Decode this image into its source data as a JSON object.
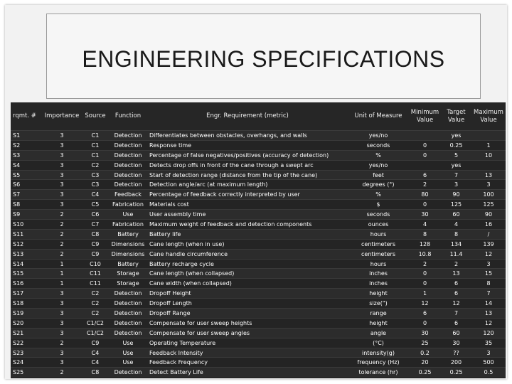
{
  "title": "ENGINEERING SPECIFICATIONS",
  "table": {
    "headers": {
      "rqmt": "rqmt. #",
      "importance": "Importance",
      "source": "Source",
      "function": "Function",
      "requirement": "Engr. Requirement (metric)",
      "unit": "Unit of Measure",
      "min": "Minimum Value",
      "target": "Target Value",
      "max": "Maximum Value"
    },
    "rows": [
      [
        "S1",
        "3",
        "C1",
        "Detection",
        "Differentiates between obstacles, overhangs, and walls",
        "yes/no",
        "",
        "yes",
        ""
      ],
      [
        "S2",
        "3",
        "C1",
        "Detection",
        "Response time",
        "seconds",
        "0",
        "0.25",
        "1"
      ],
      [
        "S3",
        "3",
        "C1",
        "Detection",
        "Percentage of false negatives/positives (accuracy of detection)",
        "%",
        "0",
        "5",
        "10"
      ],
      [
        "S4",
        "3",
        "C2",
        "Detection",
        "Detects drop offs in front of the cane through a swept arc",
        "yes/no",
        "",
        "yes",
        ""
      ],
      [
        "S5",
        "3",
        "C3",
        "Detection",
        "Start of detection range (distance from the tip of the cane)",
        "feet",
        "6",
        "7",
        "13"
      ],
      [
        "S6",
        "3",
        "C3",
        "Detection",
        "Detection angle/arc (at maximum length)",
        "degrees (°)",
        "2",
        "3",
        "3"
      ],
      [
        "S7",
        "3",
        "C4",
        "Feedback",
        "Percentage of feedback correctly interpreted by user",
        "%",
        "80",
        "90",
        "100"
      ],
      [
        "S8",
        "3",
        "C5",
        "Fabrication",
        "Materials cost",
        "$",
        "0",
        "125",
        "125"
      ],
      [
        "S9",
        "2",
        "C6",
        "Use",
        "User assembly time",
        "seconds",
        "30",
        "60",
        "90"
      ],
      [
        "S10",
        "2",
        "C7",
        "Fabrication",
        "Maximum weight of feedback and detection components",
        "ounces",
        "4",
        "4",
        "16"
      ],
      [
        "S11",
        "2",
        "C8",
        "Battery",
        "Battery life",
        "hours",
        "8",
        "8",
        "/"
      ],
      [
        "S12",
        "2",
        "C9",
        "Dimensions",
        "Cane length (when in use)",
        "centimeters",
        "128",
        "134",
        "139"
      ],
      [
        "S13",
        "2",
        "C9",
        "Dimensions",
        "Cane handle circumference",
        "centimeters",
        "10.8",
        "11.4",
        "12"
      ],
      [
        "S14",
        "1",
        "C10",
        "Battery",
        "Battery recharge cycle",
        "hours",
        "2",
        "2",
        "3"
      ],
      [
        "S15",
        "1",
        "C11",
        "Storage",
        "Cane length (when collapsed)",
        "inches",
        "0",
        "13",
        "15"
      ],
      [
        "S16",
        "1",
        "C11",
        "Storage",
        "Cane width (when collapsed)",
        "inches",
        "0",
        "6",
        "8"
      ],
      [
        "S17",
        "3",
        "C2",
        "Detection",
        "Dropoff Height",
        "height",
        "1",
        "6",
        "7"
      ],
      [
        "S18",
        "3",
        "C2",
        "Detection",
        "Dropoff Length",
        "size(\")",
        "12",
        "12",
        "14"
      ],
      [
        "S19",
        "3",
        "C2",
        "Detection",
        "Dropoff Range",
        "range",
        "6",
        "7",
        "13"
      ],
      [
        "S20",
        "3",
        "C1/C2",
        "Detection",
        "Compensate for user sweep heights",
        "height",
        "0",
        "6",
        "12"
      ],
      [
        "S21",
        "3",
        "C1/C2",
        "Detection",
        "Compensate for user sweep angles",
        "angle",
        "30",
        "60",
        "120"
      ],
      [
        "S22",
        "2",
        "C9",
        "Use",
        "Operating Temperature",
        "(°C)",
        "25",
        "30",
        "35"
      ],
      [
        "S23",
        "3",
        "C4",
        "Use",
        "Feedback Intensity",
        "intensity(g)",
        "0.2",
        "??",
        "3"
      ],
      [
        "S24",
        "3",
        "C4",
        "Use",
        "Feedback Frequency",
        "frequency (Hz)",
        "20",
        "200",
        "500"
      ],
      [
        "S25",
        "2",
        "C8",
        "Detection",
        "Detect Battery Life",
        "tolerance (hr)",
        "0.25",
        "0.25",
        "0.5"
      ]
    ]
  }
}
